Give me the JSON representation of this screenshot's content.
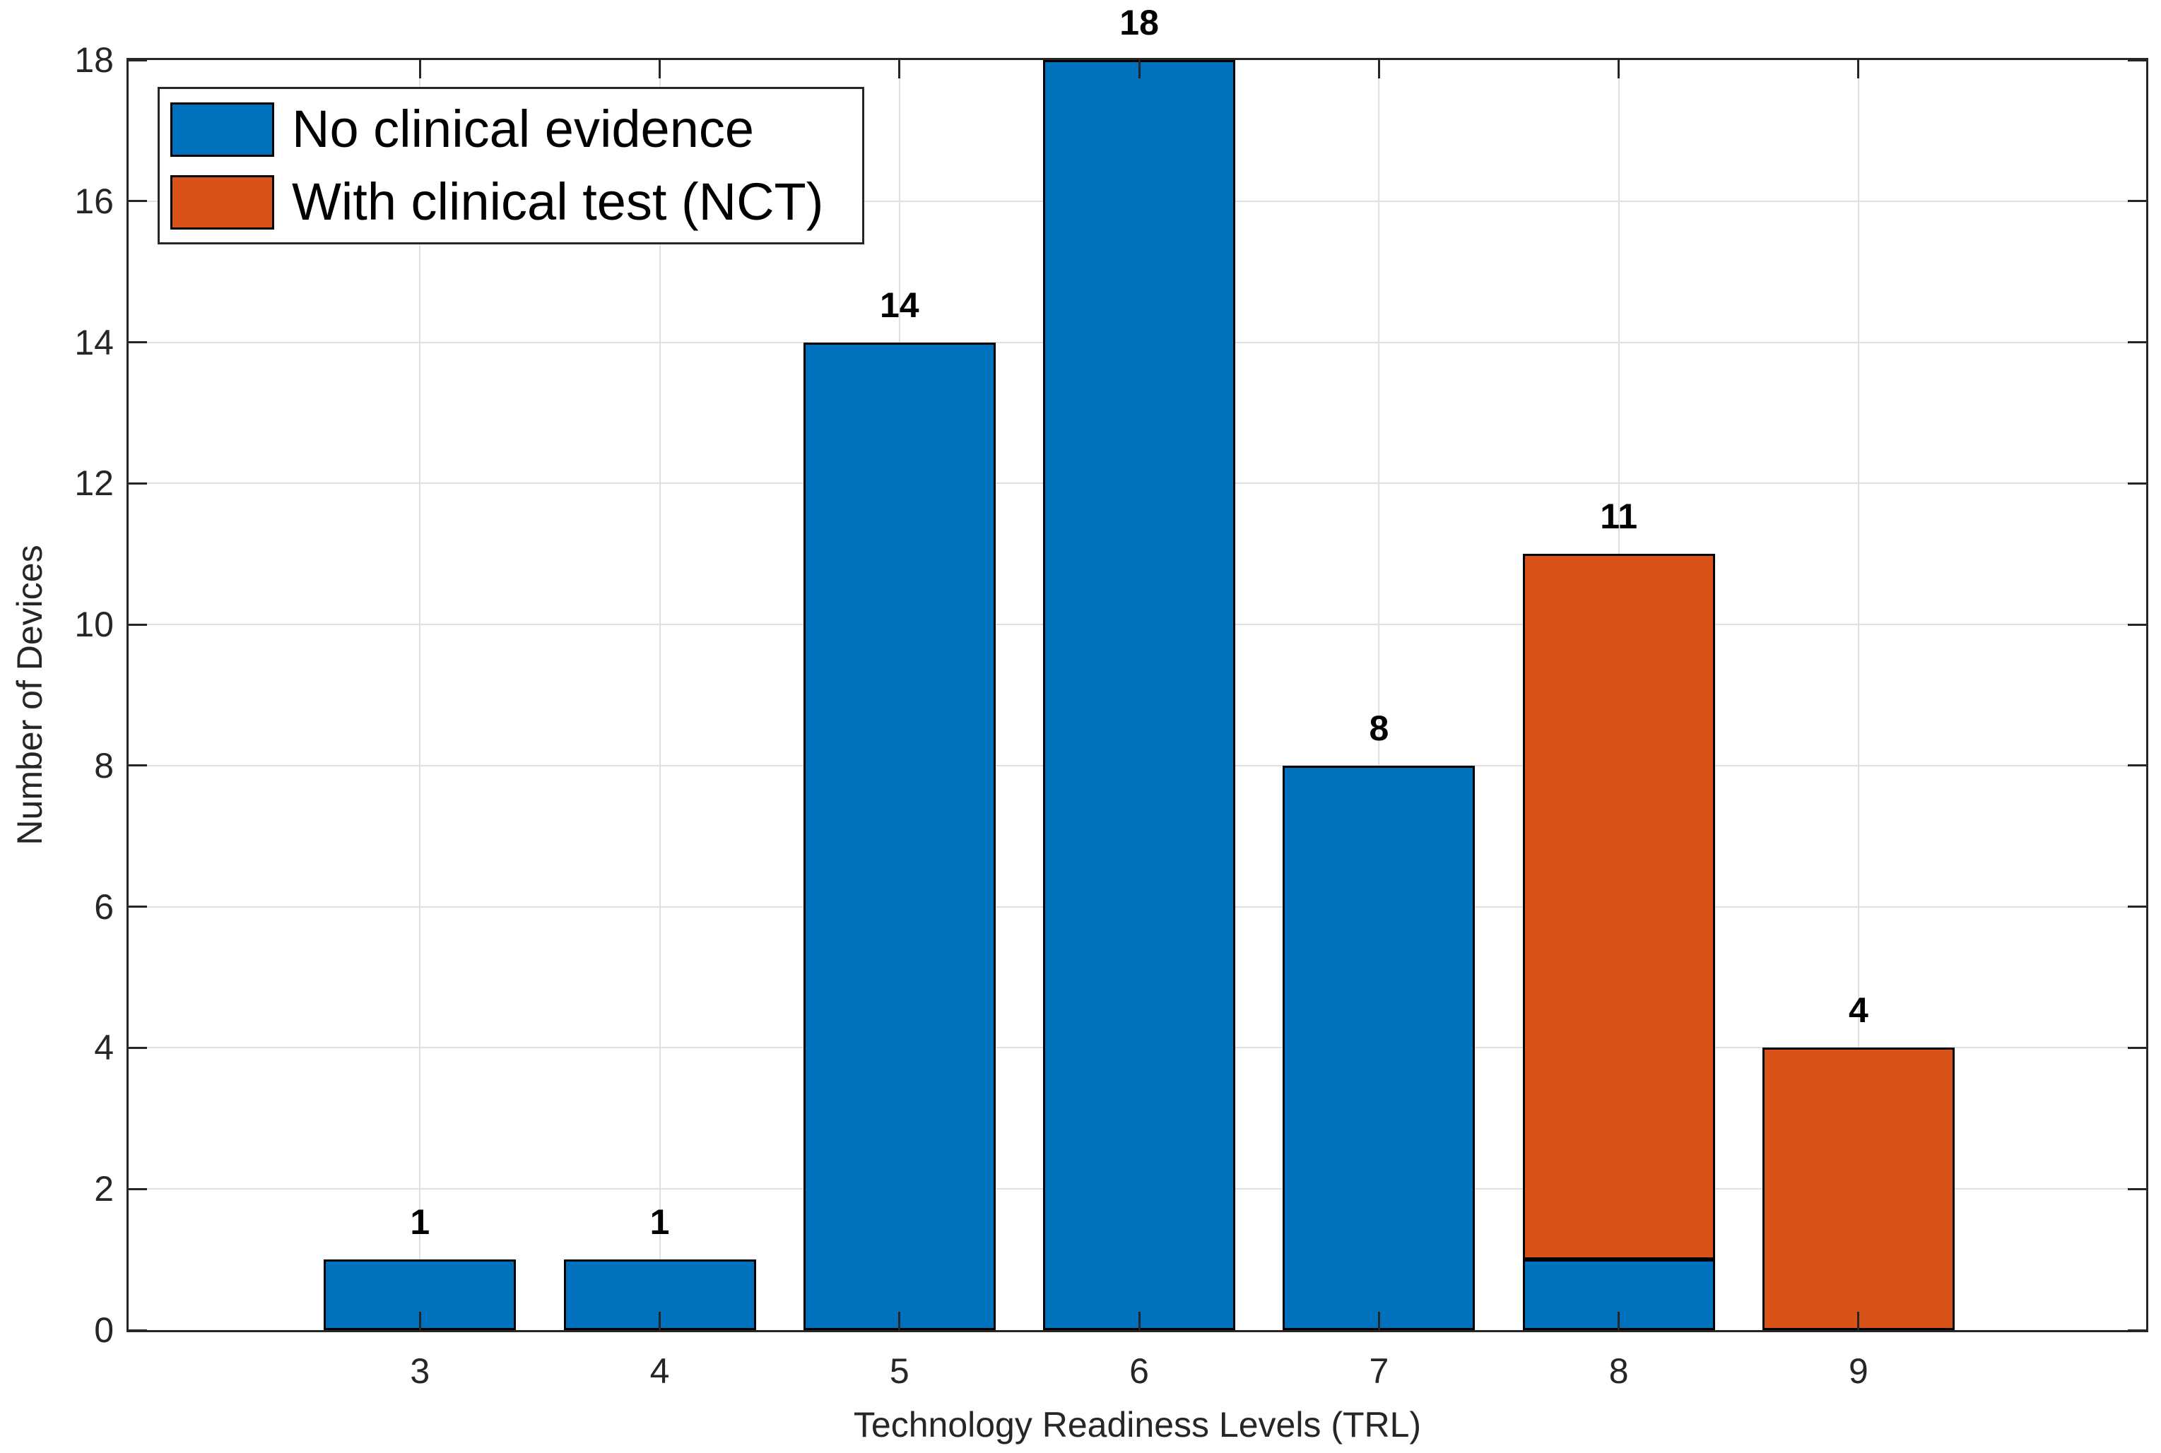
{
  "chart_data": {
    "type": "bar",
    "stacked": true,
    "title": "",
    "xlabel": "Technology Readiness Levels (TRL)",
    "ylabel": "Number of Devices",
    "categories": [
      "3",
      "4",
      "5",
      "6",
      "7",
      "8",
      "9"
    ],
    "series": [
      {
        "name": "No clinical evidence",
        "color": "#0072BD",
        "values": [
          1,
          1,
          14,
          18,
          8,
          1,
          0
        ]
      },
      {
        "name": "With clinical test (NCT)",
        "color": "#D95319",
        "values": [
          0,
          0,
          0,
          0,
          0,
          10,
          4
        ]
      }
    ],
    "bar_total_labels": [
      "1",
      "1",
      "14",
      "18",
      "8",
      "11",
      "4"
    ],
    "ylim": [
      0,
      18
    ],
    "yticks": [
      0,
      2,
      4,
      6,
      8,
      10,
      12,
      14,
      16,
      18
    ],
    "grid": true,
    "legend_position": "top-left"
  },
  "colors": {
    "axis": "#262626",
    "grid": "#e0e0e0",
    "bar_edge": "#000000",
    "background": "#ffffff",
    "value_label": "#000000"
  }
}
